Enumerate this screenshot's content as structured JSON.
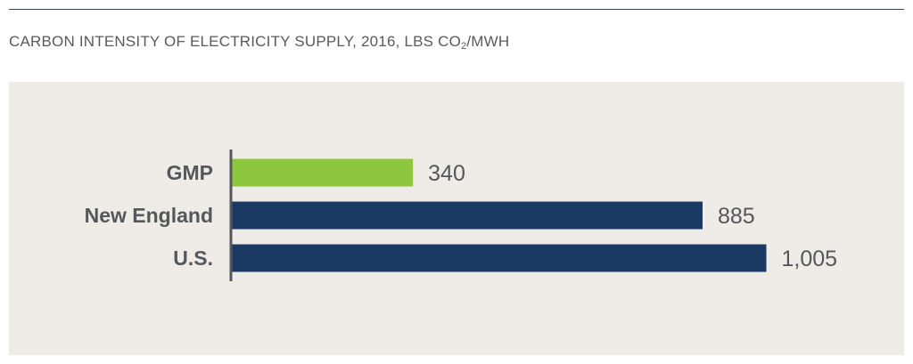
{
  "title_parts": {
    "prefix": "CARBON INTENSITY OF ELECTRICITY SUPPLY, 2016, LBS CO",
    "subscript": "2",
    "suffix": "/MWH"
  },
  "colors": {
    "highlight": "#8dc63f",
    "base": "#1a3a63",
    "axis": "#55585b",
    "panel": "#efebe6"
  },
  "chart_data": {
    "type": "bar",
    "orientation": "horizontal",
    "title": "CARBON INTENSITY OF ELECTRICITY SUPPLY, 2016, LBS CO2/MWH",
    "categories": [
      "GMP",
      "New England",
      "U.S."
    ],
    "values": [
      340,
      885,
      1005
    ],
    "value_labels": [
      "340",
      "885",
      "1,005"
    ],
    "bar_colors": [
      "#8dc63f",
      "#1a3a63",
      "#1a3a63"
    ],
    "xlim": [
      0,
      1005
    ],
    "grid": false,
    "legend": "none"
  }
}
